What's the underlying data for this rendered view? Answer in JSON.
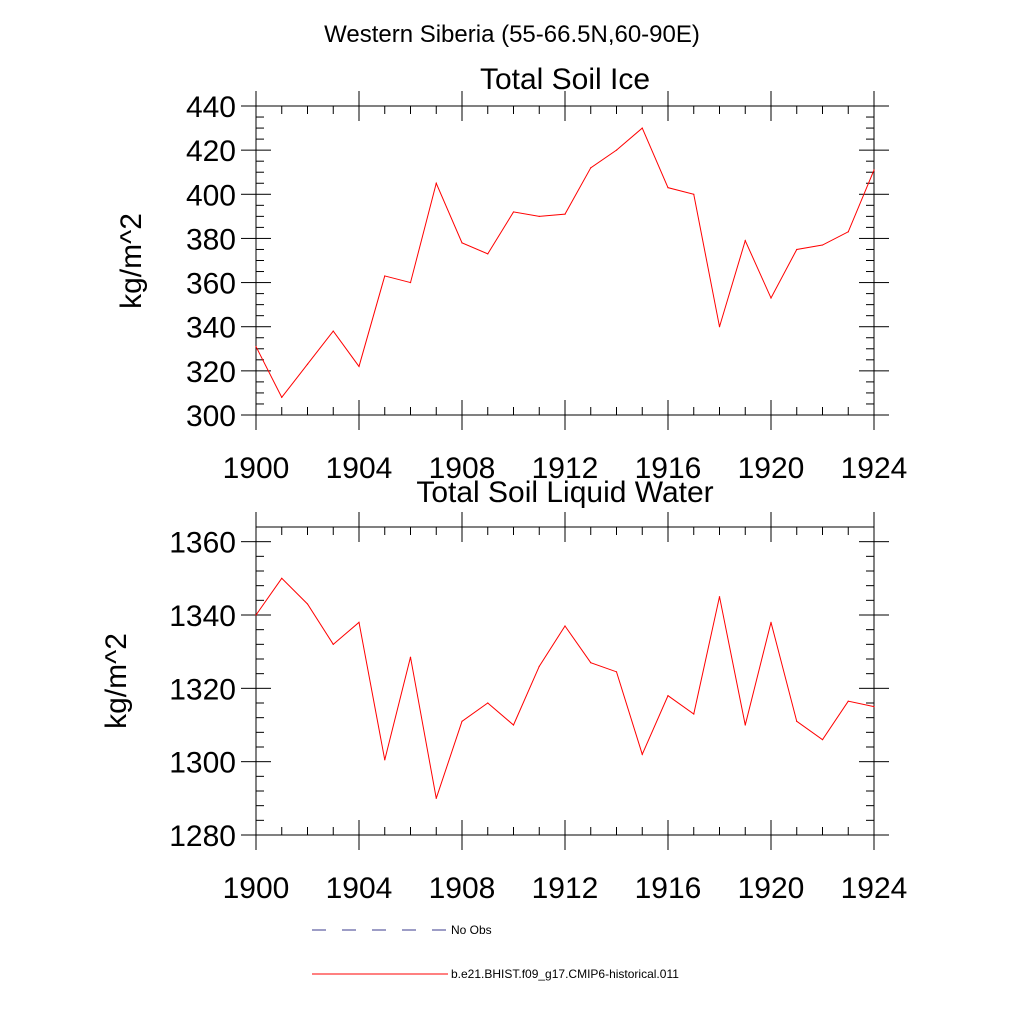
{
  "figure_title": "Western Siberia (55-66.5N,60-90E)",
  "legend": [
    {
      "label": "No Obs",
      "color": "#3b3b8c",
      "dashed": true
    },
    {
      "label": "b.e21.BHIST.f09_g17.CMIP6-historical.011",
      "color": "#ff0000",
      "dashed": false
    }
  ],
  "chart_data": [
    {
      "type": "line",
      "title": "Total Soil Ice",
      "xlabel": "",
      "ylabel": "kg/m^2",
      "xlim": [
        1900,
        1924
      ],
      "ylim": [
        300,
        440
      ],
      "xticks": [
        1900,
        1904,
        1908,
        1912,
        1916,
        1920,
        1924
      ],
      "yticks": [
        300,
        320,
        340,
        360,
        380,
        400,
        420,
        440
      ],
      "x_minor_step": 1,
      "y_minor_step": 5,
      "grid": false,
      "series": [
        {
          "name": "b.e21.BHIST.f09_g17.CMIP6-historical.011",
          "color": "#ff0000",
          "x": [
            1900,
            1901,
            1902,
            1903,
            1904,
            1905,
            1906,
            1907,
            1908,
            1909,
            1910,
            1911,
            1912,
            1913,
            1914,
            1915,
            1916,
            1917,
            1918,
            1919,
            1920,
            1921,
            1922,
            1923,
            1924
          ],
          "y": [
            331,
            308,
            323,
            338,
            322,
            363,
            360,
            405,
            378,
            373,
            392,
            390,
            391,
            412,
            420,
            430,
            403,
            400,
            340,
            379,
            353,
            375,
            377,
            383,
            411
          ]
        }
      ]
    },
    {
      "type": "line",
      "title": "Total Soil Liquid Water",
      "xlabel": "",
      "ylabel": "kg/m^2",
      "xlim": [
        1900,
        1924
      ],
      "ylim": [
        1280,
        1364
      ],
      "xticks": [
        1900,
        1904,
        1908,
        1912,
        1916,
        1920,
        1924
      ],
      "yticks": [
        1280,
        1300,
        1320,
        1340,
        1360
      ],
      "x_minor_step": 1,
      "y_minor_step": 4,
      "grid": false,
      "series": [
        {
          "name": "b.e21.BHIST.f09_g17.CMIP6-historical.011",
          "color": "#ff0000",
          "x": [
            1900,
            1901,
            1902,
            1903,
            1904,
            1905,
            1906,
            1907,
            1908,
            1909,
            1910,
            1911,
            1912,
            1913,
            1914,
            1915,
            1916,
            1917,
            1918,
            1919,
            1920,
            1921,
            1922,
            1923,
            1924
          ],
          "y": [
            1340,
            1350,
            1343,
            1332,
            1338,
            1300.5,
            1328.5,
            1290,
            1311,
            1316,
            1310,
            1326,
            1337,
            1327,
            1324.5,
            1302,
            1318,
            1313,
            1345,
            1310,
            1338,
            1311,
            1306,
            1316.5,
            1315
          ]
        }
      ]
    }
  ]
}
